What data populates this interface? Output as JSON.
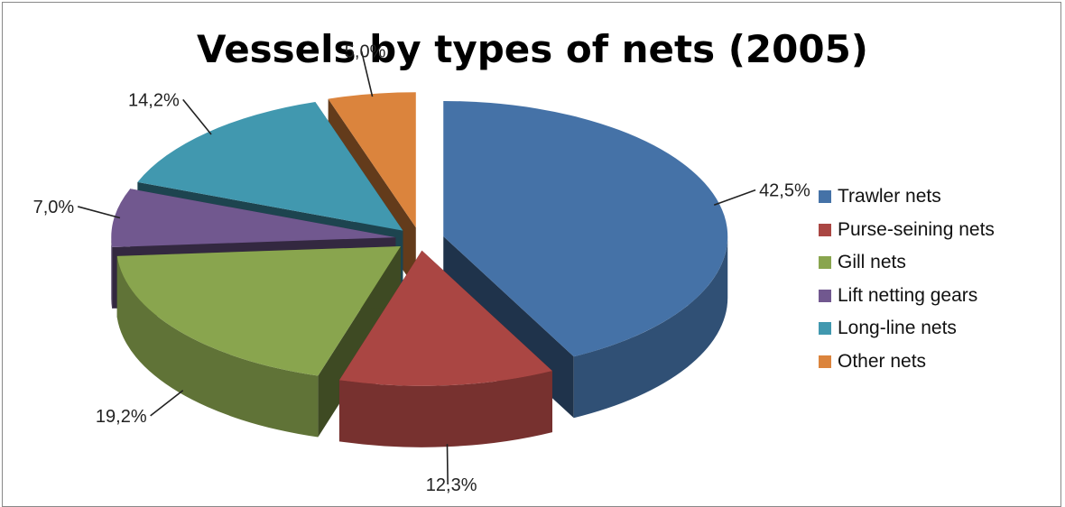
{
  "chart_data": {
    "type": "pie",
    "title": "Vessels by types of nets (2005)",
    "categories": [
      "Trawler nets",
      "Purse-seining nets",
      "Gill nets",
      "Lift netting gears",
      "Long-line nets",
      "Other nets"
    ],
    "values": [
      42.5,
      12.3,
      19.2,
      7.0,
      14.2,
      5.0
    ],
    "labels": [
      "42,5%",
      "12,3%",
      "19,2%",
      "7,0%",
      "14,2%",
      "5,0%"
    ],
    "colors": [
      "#4572A7",
      "#AA4643",
      "#89A54E",
      "#71588F",
      "#4198AF",
      "#DB843D"
    ],
    "exploded": true,
    "style_3d": true,
    "legend_position": "right"
  }
}
